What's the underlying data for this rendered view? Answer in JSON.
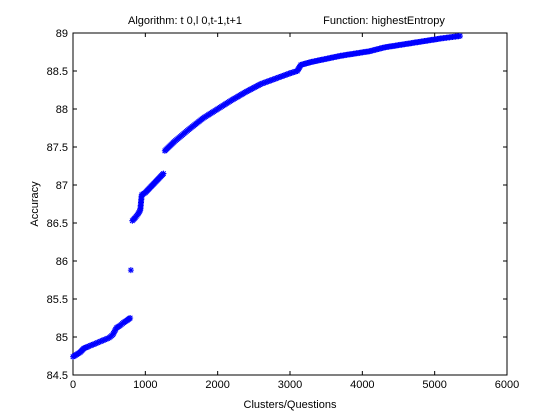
{
  "chart_data": {
    "type": "scatter",
    "title_algorithm": "Algorithm: t 0,l 0,t-1,t+1",
    "title_function": "Function: highestEntropy",
    "xlabel": "Clusters/Questions",
    "ylabel": "Accuracy",
    "xlim": [
      0,
      6000
    ],
    "ylim": [
      84.5,
      89
    ],
    "xticks": [
      0,
      1000,
      2000,
      3000,
      4000,
      5000,
      6000
    ],
    "yticks": [
      84.5,
      85,
      85.5,
      86,
      86.5,
      87,
      87.5,
      88,
      88.5,
      89
    ],
    "xtick_labels": [
      "0",
      "1000",
      "2000",
      "3000",
      "4000",
      "5000",
      "6000"
    ],
    "ytick_labels": [
      "84.5",
      "85",
      "85.5",
      "86",
      "86.5",
      "87",
      "87.5",
      "88",
      "88.5",
      "89"
    ],
    "grid": false,
    "marker": "asterisk",
    "series": [
      {
        "color": "#0000ff",
        "points": [
          [
            0,
            84.74
          ],
          [
            50,
            84.77
          ],
          [
            100,
            84.8
          ],
          [
            150,
            84.85
          ],
          [
            200,
            84.87
          ],
          [
            300,
            84.91
          ],
          [
            400,
            84.95
          ],
          [
            500,
            84.99
          ],
          [
            550,
            85.03
          ],
          [
            600,
            85.12
          ],
          [
            650,
            85.15
          ],
          [
            700,
            85.19
          ],
          [
            750,
            85.22
          ],
          [
            790,
            85.25
          ],
          [
            800,
            85.88
          ],
          [
            820,
            86.53
          ],
          [
            860,
            86.57
          ],
          [
            900,
            86.62
          ],
          [
            930,
            86.67
          ],
          [
            950,
            86.87
          ],
          [
            1000,
            86.9
          ],
          [
            1050,
            86.95
          ],
          [
            1100,
            87.0
          ],
          [
            1150,
            87.05
          ],
          [
            1200,
            87.1
          ],
          [
            1250,
            87.15
          ],
          [
            1270,
            87.45
          ],
          [
            1400,
            87.57
          ],
          [
            1600,
            87.73
          ],
          [
            1800,
            87.88
          ],
          [
            2000,
            88.0
          ],
          [
            2200,
            88.12
          ],
          [
            2400,
            88.23
          ],
          [
            2600,
            88.33
          ],
          [
            2800,
            88.4
          ],
          [
            3000,
            88.47
          ],
          [
            3100,
            88.5
          ],
          [
            3150,
            88.58
          ],
          [
            3300,
            88.62
          ],
          [
            3500,
            88.66
          ],
          [
            3700,
            88.7
          ],
          [
            3900,
            88.73
          ],
          [
            4100,
            88.76
          ],
          [
            4300,
            88.81
          ],
          [
            4500,
            88.84
          ],
          [
            4700,
            88.87
          ],
          [
            4900,
            88.9
          ],
          [
            5100,
            88.93
          ],
          [
            5350,
            88.96
          ]
        ]
      }
    ]
  }
}
